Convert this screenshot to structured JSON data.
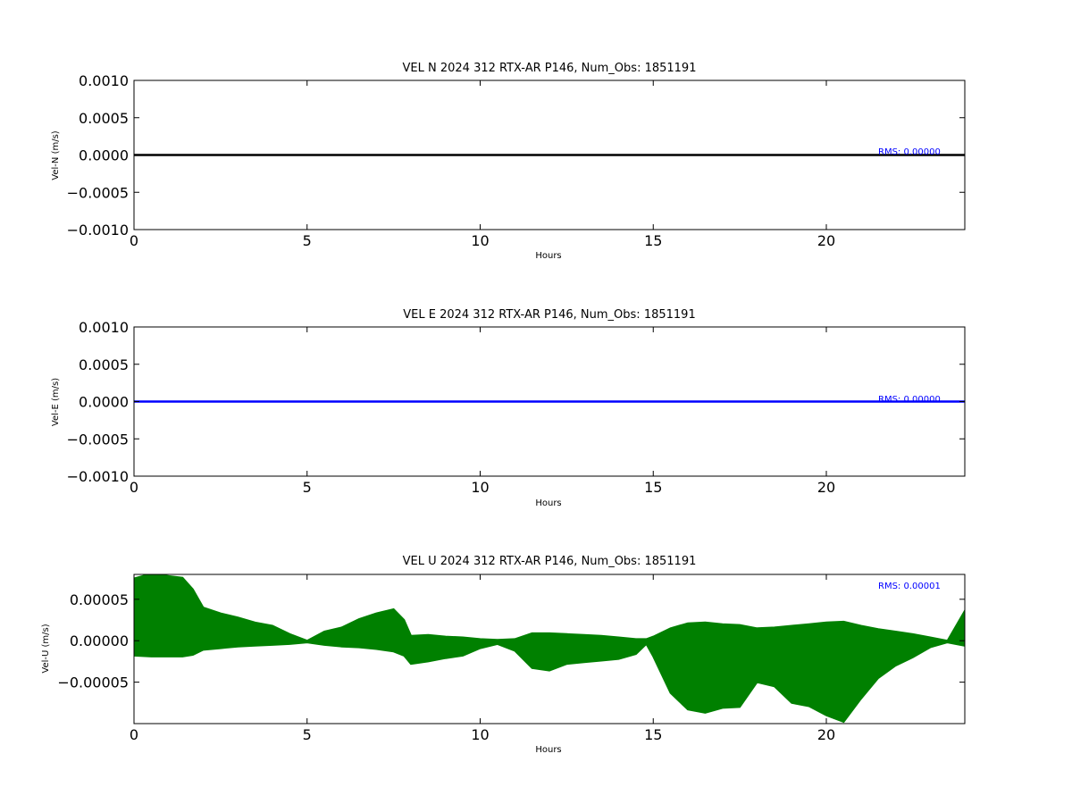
{
  "chart_data": [
    {
      "type": "line",
      "title": "VEL N 2024 312 RTX-AR  P146, Num_Obs: 1851191",
      "xlabel": "Hours",
      "ylabel": "Vel-N (m/s)",
      "xlim": [
        0,
        24
      ],
      "ylim": [
        -0.001,
        0.001
      ],
      "xticks": [
        0,
        5,
        10,
        15,
        20
      ],
      "yticks": [
        0.001,
        0.0005,
        0.0,
        -0.0005,
        -0.001
      ],
      "ytick_labels": [
        "0.0010",
        "0.0005",
        "0.0000",
        "−0.0005",
        "−0.0010"
      ],
      "color": "#000000",
      "annotation": "RMS:  0.00000",
      "series": [
        {
          "x": [
            0,
            24
          ],
          "upper": [
            4e-06,
            4e-06
          ],
          "lower": [
            -4e-06,
            -4e-06
          ]
        }
      ]
    },
    {
      "type": "line",
      "title": "VEL E 2024 312 RTX-AR  P146, Num_Obs: 1851191",
      "xlabel": "Hours",
      "ylabel": "Vel-E (m/s)",
      "xlim": [
        0,
        24
      ],
      "ylim": [
        -0.001,
        0.001
      ],
      "xticks": [
        0,
        5,
        10,
        15,
        20
      ],
      "yticks": [
        0.001,
        0.0005,
        0.0,
        -0.0005,
        -0.001
      ],
      "ytick_labels": [
        "0.0010",
        "0.0005",
        "0.0000",
        "−0.0005",
        "−0.0010"
      ],
      "color": "#0000ff",
      "annotation": "RMS:  0.00000",
      "series": [
        {
          "x": [
            0,
            24
          ],
          "upper": [
            4e-06,
            4e-06
          ],
          "lower": [
            -4e-06,
            -4e-06
          ]
        }
      ]
    },
    {
      "type": "line",
      "title": "VEL U 2024 312 RTX-AR  P146, Num_Obs: 1851191",
      "xlabel": "Hours",
      "ylabel": "Vel-U (m/s)",
      "xlim": [
        0,
        24
      ],
      "ylim": [
        -0.0001,
        8e-05
      ],
      "xticks": [
        0,
        5,
        10,
        15,
        20
      ],
      "yticks": [
        5e-05,
        0.0,
        -5e-05
      ],
      "ytick_labels": [
        "0.00005",
        "0.00000",
        "−0.00005"
      ],
      "color": "#008000",
      "annotation": "RMS:  0.00001",
      "series": [
        {
          "x": [
            0,
            0.5,
            1.0,
            1.4,
            1.7,
            2.0,
            2.5,
            3.0,
            3.5,
            4.0,
            4.5,
            5.0,
            5.5,
            6.0,
            6.5,
            7.0,
            7.5,
            7.8,
            8.0,
            8.5,
            9.0,
            9.5,
            10.0,
            10.5,
            11.0,
            11.5,
            12.0,
            12.5,
            13.0,
            13.5,
            14.0,
            14.5,
            14.8,
            15.0,
            15.5,
            16.0,
            16.5,
            17.0,
            17.5,
            18.0,
            18.5,
            19.0,
            19.5,
            20.0,
            20.5,
            21.0,
            21.5,
            22.0,
            22.5,
            23.0,
            23.5,
            24.0
          ],
          "upper": [
            7.5e-05,
            8.1e-05,
            7.8e-05,
            7.6e-05,
            6.2e-05,
            4e-05,
            3.3e-05,
            2.8e-05,
            2.2e-05,
            1.8e-05,
            8e-06,
            0.0,
            1.1e-05,
            1.6e-05,
            2.6e-05,
            3.3e-05,
            3.8e-05,
            2.5e-05,
            6e-06,
            7e-06,
            5e-06,
            4e-06,
            2e-06,
            1e-06,
            2e-06,
            9e-06,
            9e-06,
            8e-06,
            7e-06,
            6e-06,
            4e-06,
            2e-06,
            2e-06,
            5e-06,
            1.5e-05,
            2.1e-05,
            2.2e-05,
            2e-05,
            1.9e-05,
            1.5e-05,
            1.6e-05,
            1.8e-05,
            2e-05,
            2.2e-05,
            2.3e-05,
            1.8e-05,
            1.4e-05,
            1.1e-05,
            8e-06,
            4e-06,
            0.0,
            3.6e-05
          ],
          "lower": [
            -1.8e-05,
            -1.9e-05,
            -1.9e-05,
            -1.9e-05,
            -1.7e-05,
            -1.1e-05,
            -9e-06,
            -7e-06,
            -6e-06,
            -5e-06,
            -4e-06,
            -2e-06,
            -5e-06,
            -7e-06,
            -8e-06,
            -1e-05,
            -1.3e-05,
            -1.8e-05,
            -2.8e-05,
            -2.5e-05,
            -2.1e-05,
            -1.8e-05,
            -9e-06,
            -4e-06,
            -1.2e-05,
            -3.3e-05,
            -3.6e-05,
            -2.8e-05,
            -2.6e-05,
            -2.4e-05,
            -2.2e-05,
            -1.6e-05,
            -4e-06,
            -1.9e-05,
            -6.3e-05,
            -8.3e-05,
            -8.7e-05,
            -8.1e-05,
            -8e-05,
            -5e-05,
            -5.5e-05,
            -7.5e-05,
            -7.9e-05,
            -9e-05,
            -9.8e-05,
            -7e-05,
            -4.5e-05,
            -3e-05,
            -2e-05,
            -8e-06,
            -2e-06,
            -6e-06
          ]
        }
      ]
    }
  ]
}
